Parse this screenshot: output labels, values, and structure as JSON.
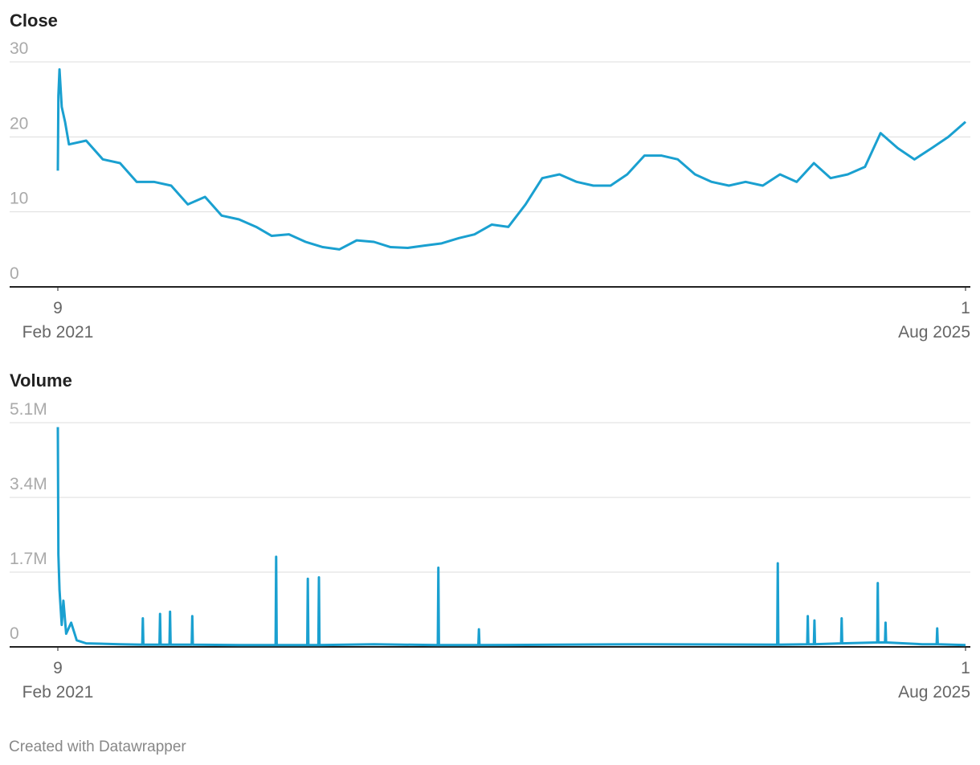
{
  "chart_data": [
    {
      "type": "line",
      "title": "Close",
      "color": "#1aa0d0",
      "grid": true,
      "x": [
        "2021-02-09",
        "2021-02-10",
        "2021-02-12",
        "2021-02-16",
        "2021-02-22",
        "2021-03-01",
        "2021-04-01",
        "2021-05-01",
        "2021-06-01",
        "2021-07-01",
        "2021-08-01",
        "2021-09-01",
        "2021-10-01",
        "2021-11-01",
        "2021-12-01",
        "2022-01-01",
        "2022-02-01",
        "2022-03-01",
        "2022-04-01",
        "2022-05-01",
        "2022-06-01",
        "2022-07-01",
        "2022-08-01",
        "2022-09-01",
        "2022-10-01",
        "2022-11-01",
        "2022-12-01",
        "2023-01-01",
        "2023-02-01",
        "2023-03-01",
        "2023-04-01",
        "2023-05-01",
        "2023-06-01",
        "2023-07-01",
        "2023-08-01",
        "2023-09-01",
        "2023-10-01",
        "2023-11-01",
        "2023-12-01",
        "2024-01-01",
        "2024-02-01",
        "2024-03-01",
        "2024-04-01",
        "2024-05-01",
        "2024-06-01",
        "2024-07-01",
        "2024-08-01",
        "2024-09-01",
        "2024-10-01",
        "2024-11-01",
        "2024-12-01",
        "2025-01-01",
        "2025-02-01",
        "2025-03-01",
        "2025-04-01",
        "2025-05-01",
        "2025-06-01",
        "2025-07-01",
        "2025-08-01"
      ],
      "values": [
        15.5,
        25.5,
        29,
        24,
        22,
        19,
        19.5,
        17,
        16.5,
        14,
        14,
        13.5,
        11,
        12,
        9.5,
        9,
        8,
        6.8,
        7,
        6,
        5.3,
        5,
        6.2,
        6,
        5.3,
        5.2,
        5.5,
        5.8,
        6.5,
        7,
        8.3,
        8,
        11,
        14.5,
        15,
        14,
        13.5,
        13.5,
        15,
        17.5,
        17.5,
        17,
        15,
        14,
        13.5,
        14,
        13.5,
        15,
        14,
        16.5,
        14.5,
        15,
        16,
        20.5,
        18.5,
        17,
        18.5,
        20,
        22
      ],
      "xlim": [
        "2021-02-09",
        "2025-08-01"
      ],
      "xticks": [
        {
          "value": "2021-02-09",
          "label": [
            "9",
            "Feb 2021"
          ]
        },
        {
          "value": "2025-08-01",
          "label": [
            "1",
            "Aug 2025"
          ]
        }
      ],
      "ylim": [
        0,
        30
      ],
      "yticks": [
        0,
        10,
        20,
        30
      ]
    },
    {
      "type": "line",
      "title": "Volume",
      "color": "#1aa0d0",
      "grid": true,
      "x": [
        "2021-02-09",
        "2021-02-10",
        "2021-02-12",
        "2021-02-16",
        "2021-02-19",
        "2021-02-24",
        "2021-03-05",
        "2021-03-15",
        "2021-04-01",
        "2021-06-01",
        "2021-07-11",
        "2021-07-12",
        "2021-07-13",
        "2021-08-11",
        "2021-08-12",
        "2021-08-13",
        "2021-08-29",
        "2021-08-30",
        "2021-08-31",
        "2021-10-08",
        "2021-10-09",
        "2021-10-10",
        "2022-01-01",
        "2022-03-08",
        "2022-03-09",
        "2022-03-10",
        "2022-05-04",
        "2022-05-05",
        "2022-05-06",
        "2022-05-24",
        "2022-05-25",
        "2022-05-26",
        "2022-09-01",
        "2022-12-25",
        "2022-12-26",
        "2022-12-27",
        "2023-03-08",
        "2023-03-09",
        "2023-03-10",
        "2023-08-01",
        "2024-01-01",
        "2024-08-27",
        "2024-08-28",
        "2024-08-29",
        "2024-10-20",
        "2024-10-21",
        "2024-10-22",
        "2024-11-01",
        "2024-11-02",
        "2024-11-03",
        "2024-12-20",
        "2024-12-21",
        "2024-12-22",
        "2025-02-23",
        "2025-02-24",
        "2025-02-25",
        "2025-03-09",
        "2025-03-10",
        "2025-03-11",
        "2025-05-15",
        "2025-06-10",
        "2025-06-11",
        "2025-06-12",
        "2025-08-01"
      ],
      "values": [
        5000000,
        2100000,
        1300000,
        500000,
        1050000,
        300000,
        550000,
        150000,
        80000,
        60000,
        50000,
        650000,
        50000,
        50000,
        750000,
        50000,
        50000,
        800000,
        50000,
        50000,
        700000,
        50000,
        40000,
        40000,
        2050000,
        40000,
        40000,
        1550000,
        40000,
        40000,
        1580000,
        40000,
        60000,
        40000,
        1800000,
        40000,
        40000,
        400000,
        40000,
        50000,
        60000,
        50000,
        1900000,
        50000,
        60000,
        700000,
        60000,
        60000,
        600000,
        60000,
        80000,
        650000,
        80000,
        100000,
        1450000,
        100000,
        100000,
        550000,
        100000,
        60000,
        60000,
        420000,
        60000,
        40000
      ],
      "xlim": [
        "2021-02-09",
        "2025-08-01"
      ],
      "xticks": [
        {
          "value": "2021-02-09",
          "label": [
            "9",
            "Feb 2021"
          ]
        },
        {
          "value": "2025-08-01",
          "label": [
            "1",
            "Aug 2025"
          ]
        }
      ],
      "ylim": [
        0,
        5100000
      ],
      "yticks": [
        0,
        {
          "value": 1700000,
          "label": "1.7M"
        },
        {
          "value": 3400000,
          "label": "3.4M"
        },
        {
          "value": 5100000,
          "label": "5.1M"
        }
      ]
    }
  ],
  "credit": "Created with Datawrapper"
}
